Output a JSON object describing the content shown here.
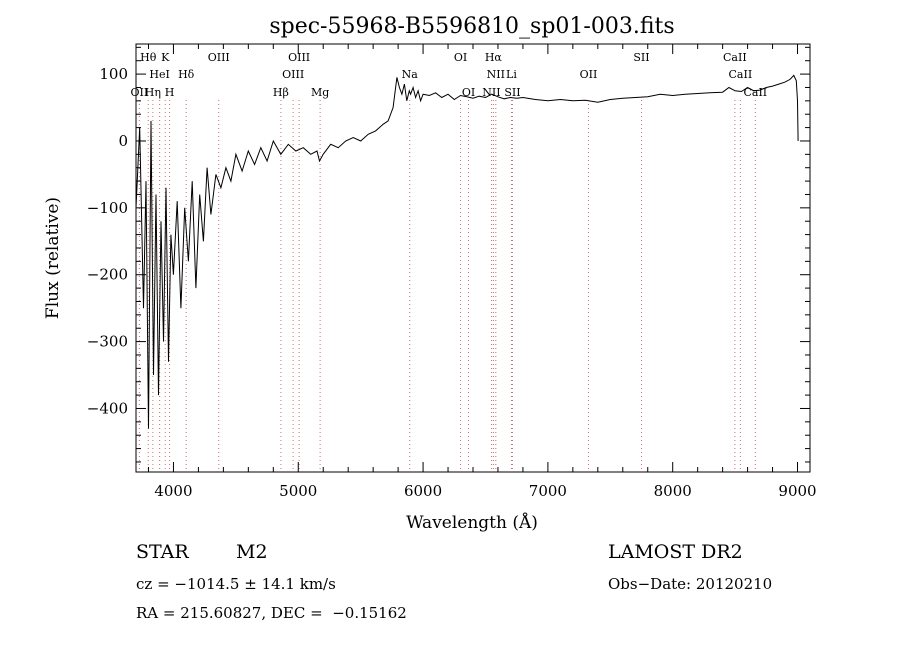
{
  "chart_data": {
    "type": "line",
    "title": "spec-55968-B5596810_sp01-003.fits",
    "xlabel": "Wavelength (Å)",
    "ylabel": "Flux (relative)",
    "xlim": [
      3700,
      9100
    ],
    "ylim": [
      -495,
      145
    ],
    "x_ticks": [
      4000,
      5000,
      6000,
      7000,
      8000,
      9000
    ],
    "y_ticks": [
      -400,
      -300,
      -200,
      -100,
      0,
      100
    ],
    "grid": false,
    "series": [
      {
        "x": [
          3700,
          3730,
          3760,
          3780,
          3800,
          3820,
          3840,
          3860,
          3880,
          3900,
          3920,
          3940,
          3960,
          3980,
          4000,
          4030,
          4060,
          4090,
          4120,
          4150,
          4180,
          4210,
          4240,
          4270,
          4300,
          4340,
          4380,
          4420,
          4460,
          4500,
          4550,
          4600,
          4650,
          4700,
          4750,
          4800,
          4860,
          4920,
          4980,
          5040,
          5100,
          5150,
          5170,
          5200,
          5260,
          5320,
          5380,
          5440,
          5500,
          5560,
          5620,
          5680,
          5720,
          5760,
          5790,
          5810,
          5830,
          5850,
          5870,
          5890,
          5900,
          5920,
          5940,
          5960,
          5980,
          6000,
          6050,
          6100,
          6150,
          6200,
          6250,
          6300,
          6350,
          6400,
          6450,
          6500,
          6550,
          6600,
          6650,
          6700,
          6750,
          6800,
          6900,
          7000,
          7100,
          7200,
          7300,
          7400,
          7500,
          7600,
          7700,
          7800,
          7900,
          8000,
          8100,
          8200,
          8300,
          8400,
          8450,
          8500,
          8550,
          8600,
          8650,
          8700,
          8750,
          8800,
          8850,
          8900,
          8940,
          8970,
          8990,
          9000,
          9005
        ],
        "y": [
          -100,
          20,
          -250,
          -60,
          -430,
          30,
          -350,
          -80,
          -380,
          -120,
          -300,
          -70,
          -330,
          -140,
          -200,
          -90,
          -250,
          -100,
          -180,
          -60,
          -220,
          -80,
          -150,
          -40,
          -110,
          -50,
          -70,
          -40,
          -60,
          -20,
          -45,
          -15,
          -35,
          -10,
          -30,
          0,
          -20,
          -5,
          -15,
          -10,
          -20,
          -15,
          -30,
          -20,
          -5,
          -10,
          0,
          5,
          0,
          10,
          15,
          25,
          30,
          50,
          95,
          80,
          70,
          85,
          60,
          75,
          70,
          80,
          65,
          75,
          60,
          70,
          68,
          72,
          65,
          70,
          62,
          68,
          66,
          64,
          67,
          65,
          70,
          66,
          63,
          65,
          64,
          65,
          62,
          60,
          62,
          60,
          61,
          58,
          62,
          64,
          65,
          66,
          70,
          68,
          70,
          71,
          72,
          73,
          80,
          75,
          74,
          80,
          75,
          76,
          80,
          82,
          85,
          88,
          92,
          98,
          90,
          60,
          0
        ]
      }
    ],
    "lines": [
      {
        "label": "Hθ",
        "x": 3798,
        "row": 1
      },
      {
        "label": "K",
        "x": 3934,
        "row": 1
      },
      {
        "label": "HeI",
        "x": 3889,
        "row": 2
      },
      {
        "label": "Hδ",
        "x": 4102,
        "row": 2
      },
      {
        "label": "OII",
        "x": 3727,
        "row": 3
      },
      {
        "label": "Hη",
        "x": 3835,
        "row": 3
      },
      {
        "label": "H",
        "x": 3969,
        "row": 3
      },
      {
        "label": "OIII",
        "x": 4363,
        "row": 1
      },
      {
        "label": "OIII",
        "x": 5007,
        "row": 1
      },
      {
        "label": "OIII",
        "x": 4959,
        "row": 2
      },
      {
        "label": "Hβ",
        "x": 4861,
        "row": 3
      },
      {
        "label": "Mg",
        "x": 5175,
        "row": 3
      },
      {
        "label": "Na",
        "x": 5893,
        "row": 2
      },
      {
        "label": "OI",
        "x": 6300,
        "row": 1
      },
      {
        "label": "Hα",
        "x": 6563,
        "row": 1
      },
      {
        "label": "NII",
        "x": 6583,
        "row": 2
      },
      {
        "label": "Li",
        "x": 6708,
        "row": 2
      },
      {
        "label": "OI",
        "x": 6364,
        "row": 3
      },
      {
        "label": "NII",
        "x": 6548,
        "row": 3
      },
      {
        "label": "SII",
        "x": 6716,
        "row": 3
      },
      {
        "label": "OII",
        "x": 7325,
        "row": 2
      },
      {
        "label": "SII",
        "x": 7750,
        "row": 1
      },
      {
        "label": "CaII",
        "x": 8498,
        "row": 1
      },
      {
        "label": "CaII",
        "x": 8542,
        "row": 2
      },
      {
        "label": "CaII",
        "x": 8662,
        "row": 3
      }
    ]
  },
  "info": {
    "star": "STAR",
    "subclass": "M2",
    "survey": "LAMOST DR2",
    "cz": "cz = −1014.5 ± 14.1 km/s",
    "obs_date": "Obs−Date: 20120210",
    "coords": "RA = 215.60827, DEC =  −0.15162"
  }
}
